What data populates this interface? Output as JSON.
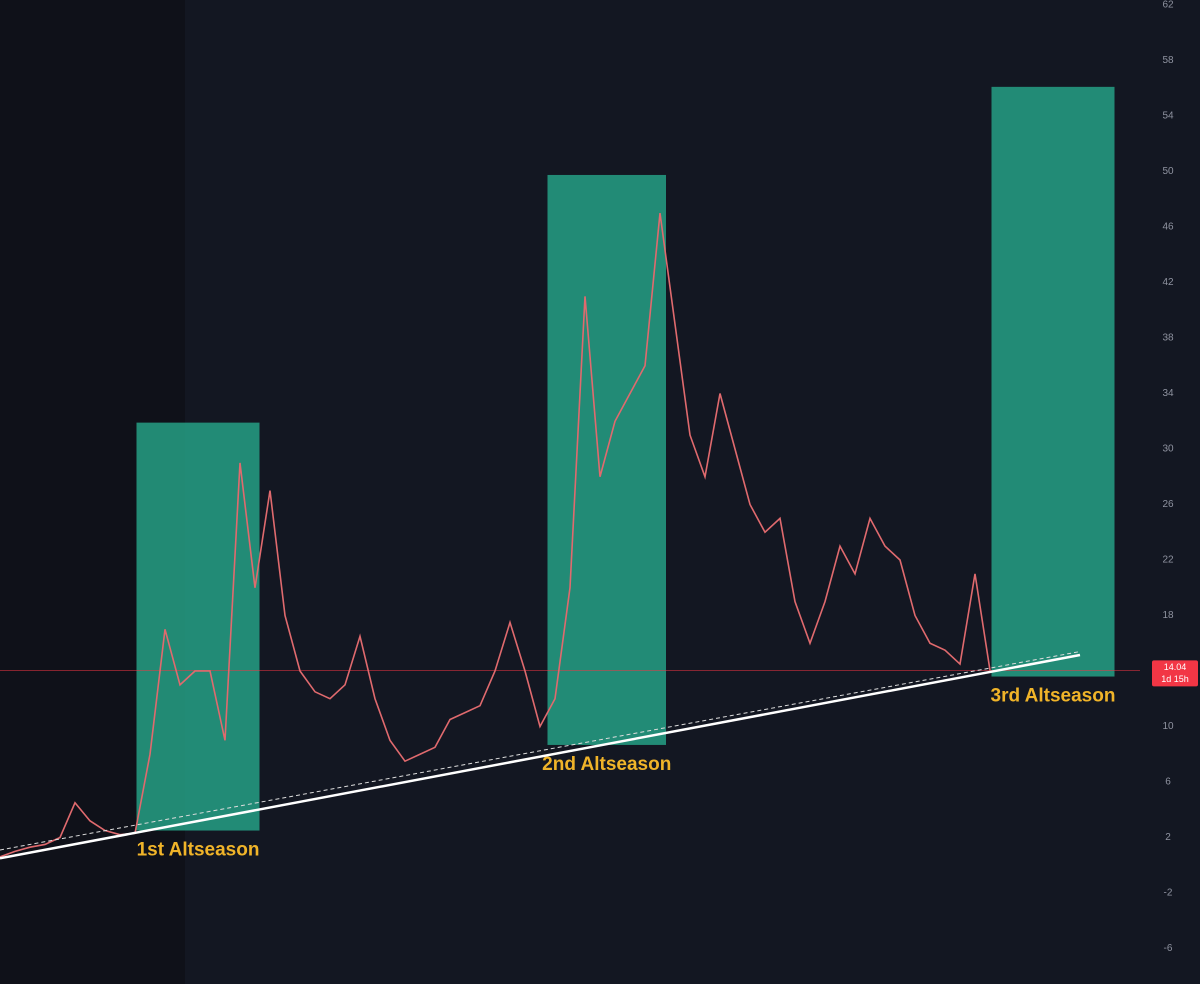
{
  "chart_data": {
    "type": "line",
    "categories": [
      null,
      null,
      null,
      null,
      null,
      null,
      null,
      null,
      null,
      null,
      null,
      null,
      null,
      null,
      null,
      null,
      null,
      null,
      null,
      null,
      null,
      null,
      null,
      null,
      null,
      null,
      null,
      null,
      null,
      null,
      null,
      null,
      null,
      null,
      null,
      null,
      null,
      null,
      null,
      null,
      null,
      null,
      null,
      null,
      null,
      null,
      null,
      null,
      null,
      null,
      null,
      null,
      null,
      null,
      null,
      null,
      null,
      null,
      null,
      null,
      null,
      null,
      null,
      null,
      null,
      null,
      null
    ],
    "series": [
      {
        "color": "#e06a6e",
        "values": [
          0.6,
          1.0,
          1.3,
          1.5,
          2.0,
          4.5,
          3.2,
          2.5,
          2.2,
          2.3,
          8,
          17,
          13,
          14,
          14,
          9,
          29,
          20,
          27,
          18,
          14,
          12.5,
          12,
          13,
          16.5,
          12,
          9,
          7.5,
          8,
          8.5,
          10.5,
          11,
          11.5,
          14,
          17.5,
          14,
          10,
          12,
          20,
          41,
          28,
          32,
          34,
          36,
          47,
          39,
          31,
          28,
          34,
          30,
          26,
          24,
          25,
          19,
          16,
          19,
          23,
          21,
          25,
          23,
          22,
          18,
          16,
          15.5,
          14.5,
          21,
          14.04
        ]
      }
    ],
    "xlim": [
      0,
      76
    ],
    "ylim": [
      -8.56,
      62.36
    ],
    "yticks": [
      -6,
      -2,
      2,
      6,
      10,
      14,
      18,
      22,
      26,
      30,
      34,
      38,
      42,
      46,
      50,
      54,
      58,
      62
    ],
    "boxes": [
      {
        "label": "1st Altseason",
        "from": 9.1,
        "to": 17.3,
        "low": 2.5,
        "high": 31.9,
        "color": "#26a085"
      },
      {
        "label": "2nd Altseason",
        "from": 36.5,
        "to": 44.4,
        "low": 8.67,
        "high": 49.75,
        "color": "#26a085"
      },
      {
        "label": "3rd Altseason",
        "from": 66.1,
        "to": 74.3,
        "low": 13.6,
        "high": 56.1,
        "color": "#26a085"
      }
    ],
    "trendline": {
      "x": [
        0,
        72
      ],
      "y": [
        0.5,
        15.15
      ],
      "color": "#ffffff"
    },
    "trendline_dashed": {
      "x": [
        0,
        72
      ],
      "y": [
        1.1,
        15.4
      ],
      "color": "#dddddd"
    },
    "last_price": 14.04,
    "countdown": "1d 15h",
    "price_color": "#f23645",
    "label_color": "#f0b429"
  }
}
